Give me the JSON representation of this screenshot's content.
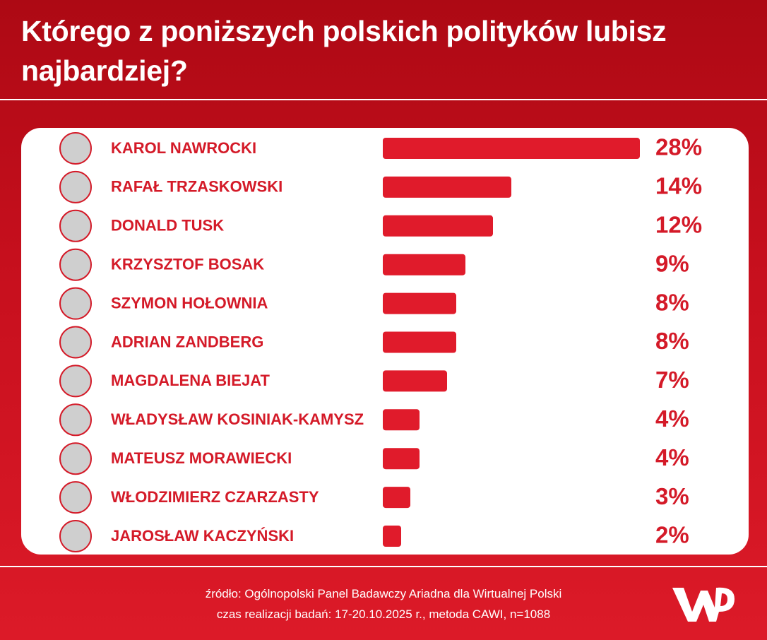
{
  "chart_data": {
    "type": "bar",
    "orientation": "horizontal",
    "title": "Którego z poniższych polskich polityków lubisz najbardziej?",
    "categories": [
      "KAROL NAWROCKI",
      "RAFAŁ TRZASKOWSKI",
      "DONALD TUSK",
      "KRZYSZTOF BOSAK",
      "SZYMON HOŁOWNIA",
      "ADRIAN ZANDBERG",
      "MAGDALENA BIEJAT",
      "WŁADYSŁAW KOSINIAK-KAMYSZ",
      "MATEUSZ MORAWIECKI",
      "WŁODZIMIERZ CZARZASTY",
      "JAROSŁAW KACZYŃSKI"
    ],
    "values": [
      28,
      14,
      12,
      9,
      8,
      8,
      7,
      4,
      4,
      3,
      2
    ],
    "value_labels": [
      "28%",
      "14%",
      "12%",
      "9%",
      "8%",
      "8%",
      "7%",
      "4%",
      "4%",
      "3%",
      "2%"
    ],
    "color": "#e01b2b",
    "source": "źródło: Ogólnopolski Panel Badawczy Ariadna dla Wirtualnej Polski",
    "method": "czas realizacji badań: 17-20.10.2025 r., metoda CAWI, n=1088"
  }
}
